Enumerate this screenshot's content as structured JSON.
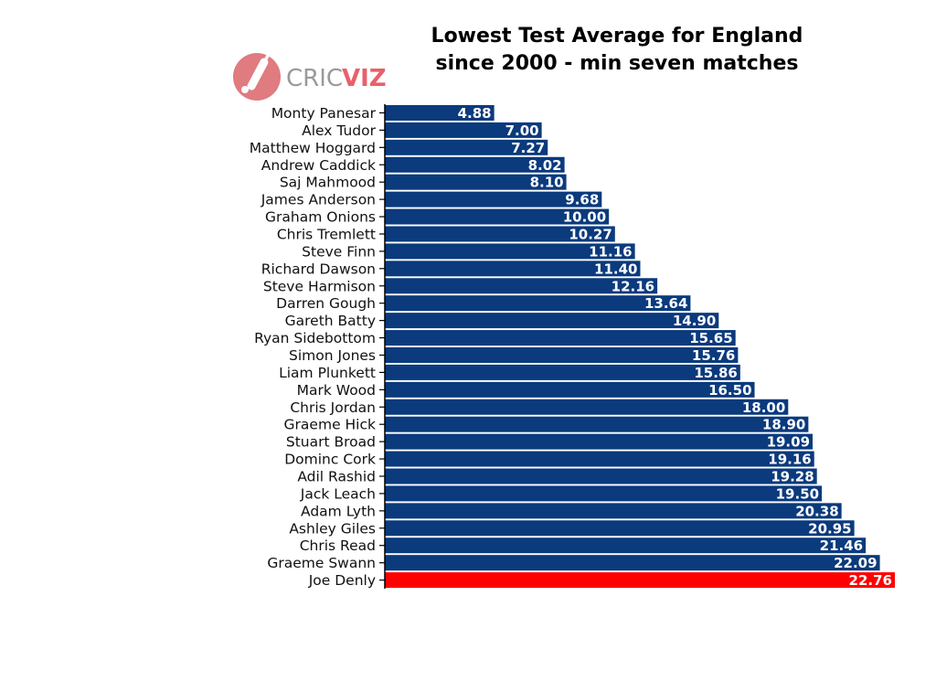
{
  "logo": {
    "text_cric": "CRIC",
    "text_viz": "VIZ",
    "icon": "cricket-bat-ball-icon",
    "color_circle": "#e07b80",
    "color_cric": "#9a9a9a",
    "color_viz": "#e8606a"
  },
  "chart_data": {
    "type": "bar",
    "orientation": "horizontal",
    "title_line1": "Lowest Test Average for England",
    "title_line2": "since 2000 - min seven matches",
    "xlabel": "",
    "ylabel": "",
    "xlim": [
      0,
      22.76
    ],
    "grid": false,
    "legend": "none",
    "colors": {
      "default": "#0b3a7d",
      "highlight": "#ff0000"
    },
    "highlight": "Joe Denly",
    "categories": [
      "Monty Panesar",
      "Alex Tudor",
      "Matthew Hoggard",
      "Andrew Caddick",
      "Saj Mahmood",
      "James Anderson",
      "Graham Onions",
      "Chris Tremlett",
      "Steve Finn",
      "Richard Dawson",
      "Steve Harmison",
      "Darren Gough",
      "Gareth Batty",
      "Ryan Sidebottom",
      "Simon Jones",
      "Liam Plunkett",
      "Mark Wood",
      "Chris Jordan",
      "Graeme Hick",
      "Stuart Broad",
      "Dominc Cork",
      "Adil Rashid",
      "Jack Leach",
      "Adam Lyth",
      "Ashley Giles",
      "Chris Read",
      "Graeme Swann",
      "Joe Denly"
    ],
    "values": [
      4.88,
      7.0,
      7.27,
      8.02,
      8.1,
      9.68,
      10.0,
      10.27,
      11.16,
      11.4,
      12.16,
      13.64,
      14.9,
      15.65,
      15.76,
      15.86,
      16.5,
      18.0,
      18.9,
      19.09,
      19.16,
      19.28,
      19.5,
      20.38,
      20.95,
      21.46,
      22.09,
      22.76
    ],
    "value_labels": [
      "4.88",
      "7.00",
      "7.27",
      "8.02",
      "8.10",
      "9.68",
      "10.00",
      "10.27",
      "11.16",
      "11.40",
      "12.16",
      "13.64",
      "14.90",
      "15.65",
      "15.76",
      "15.86",
      "16.50",
      "18.00",
      "18.90",
      "19.09",
      "19.16",
      "19.28",
      "19.50",
      "20.38",
      "20.95",
      "21.46",
      "22.09",
      "22.76"
    ]
  }
}
